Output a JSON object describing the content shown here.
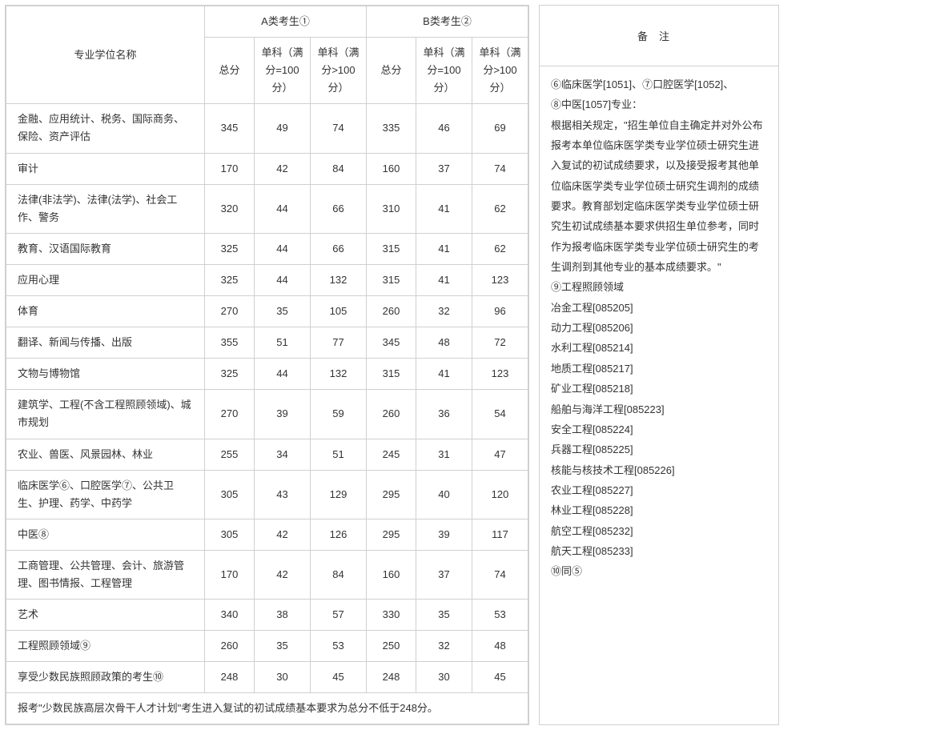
{
  "headers": {
    "col_name": "专业学位名称",
    "group_a": "A类考生①",
    "group_b": "B类考生②",
    "total": "总分",
    "sub100": "单科（满分=100分）",
    "subgt100": "单科（满分>100分）",
    "notes_title": "备注"
  },
  "rows": [
    {
      "name": "金融、应用统计、税务、国际商务、保险、资产评估",
      "a": [
        "345",
        "49",
        "74"
      ],
      "b": [
        "335",
        "46",
        "69"
      ]
    },
    {
      "name": "审计",
      "a": [
        "170",
        "42",
        "84"
      ],
      "b": [
        "160",
        "37",
        "74"
      ]
    },
    {
      "name": "法律(非法学)、法律(法学)、社会工作、警务",
      "a": [
        "320",
        "44",
        "66"
      ],
      "b": [
        "310",
        "41",
        "62"
      ]
    },
    {
      "name": "教育、汉语国际教育",
      "a": [
        "325",
        "44",
        "66"
      ],
      "b": [
        "315",
        "41",
        "62"
      ]
    },
    {
      "name": "应用心理",
      "a": [
        "325",
        "44",
        "132"
      ],
      "b": [
        "315",
        "41",
        "123"
      ]
    },
    {
      "name": "体育",
      "a": [
        "270",
        "35",
        "105"
      ],
      "b": [
        "260",
        "32",
        "96"
      ]
    },
    {
      "name": "翻译、新闻与传播、出版",
      "a": [
        "355",
        "51",
        "77"
      ],
      "b": [
        "345",
        "48",
        "72"
      ]
    },
    {
      "name": "文物与博物馆",
      "a": [
        "325",
        "44",
        "132"
      ],
      "b": [
        "315",
        "41",
        "123"
      ]
    },
    {
      "name": "建筑学、工程(不含工程照顾领域)、城市规划",
      "a": [
        "270",
        "39",
        "59"
      ],
      "b": [
        "260",
        "36",
        "54"
      ]
    },
    {
      "name": "农业、兽医、风景园林、林业",
      "a": [
        "255",
        "34",
        "51"
      ],
      "b": [
        "245",
        "31",
        "47"
      ]
    },
    {
      "name": "临床医学⑥、口腔医学⑦、公共卫生、护理、药学、中药学",
      "a": [
        "305",
        "43",
        "129"
      ],
      "b": [
        "295",
        "40",
        "120"
      ]
    },
    {
      "name": "中医⑧",
      "a": [
        "305",
        "42",
        "126"
      ],
      "b": [
        "295",
        "39",
        "117"
      ]
    },
    {
      "name": "工商管理、公共管理、会计、旅游管理、图书情报、工程管理",
      "a": [
        "170",
        "42",
        "84"
      ],
      "b": [
        "160",
        "37",
        "74"
      ]
    },
    {
      "name": "艺术",
      "a": [
        "340",
        "38",
        "57"
      ],
      "b": [
        "330",
        "35",
        "53"
      ]
    },
    {
      "name": "工程照顾领域⑨",
      "a": [
        "260",
        "35",
        "53"
      ],
      "b": [
        "250",
        "32",
        "48"
      ]
    },
    {
      "name": "享受少数民族照顾政策的考生⑩",
      "a": [
        "248",
        "30",
        "45"
      ],
      "b": [
        "248",
        "30",
        "45"
      ]
    }
  ],
  "footnote": "报考\"少数民族高层次骨干人才计划\"考生进入复试的初试成绩基本要求为总分不低于248分。",
  "notes": [
    "⑥临床医学[1051]、⑦口腔医学[1052]、",
    "⑧中医[1057]专业：",
    "根据相关规定，\"招生单位自主确定并对外公布报考本单位临床医学类专业学位硕士研究生进入复试的初试成绩要求，以及接受报考其他单位临床医学类专业学位硕士研究生调剂的成绩要求。教育部划定临床医学类专业学位硕士研究生初试成绩基本要求供招生单位参考，同时作为报考临床医学类专业学位硕士研究生的考生调剂到其他专业的基本成绩要求。\"",
    "⑨工程照顾领域",
    "冶金工程[085205]",
    "动力工程[085206]",
    "水利工程[085214]",
    "地质工程[085217]",
    "矿业工程[085218]",
    "船舶与海洋工程[085223]",
    "安全工程[085224]",
    "兵器工程[085225]",
    "核能与核技术工程[085226]",
    "农业工程[085227]",
    "林业工程[085228]",
    "航空工程[085232]",
    "航天工程[085233]",
    "⑩同⑤"
  ],
  "colors": {
    "border": "#d0d0d0",
    "text": "#333333",
    "background": "#ffffff"
  }
}
